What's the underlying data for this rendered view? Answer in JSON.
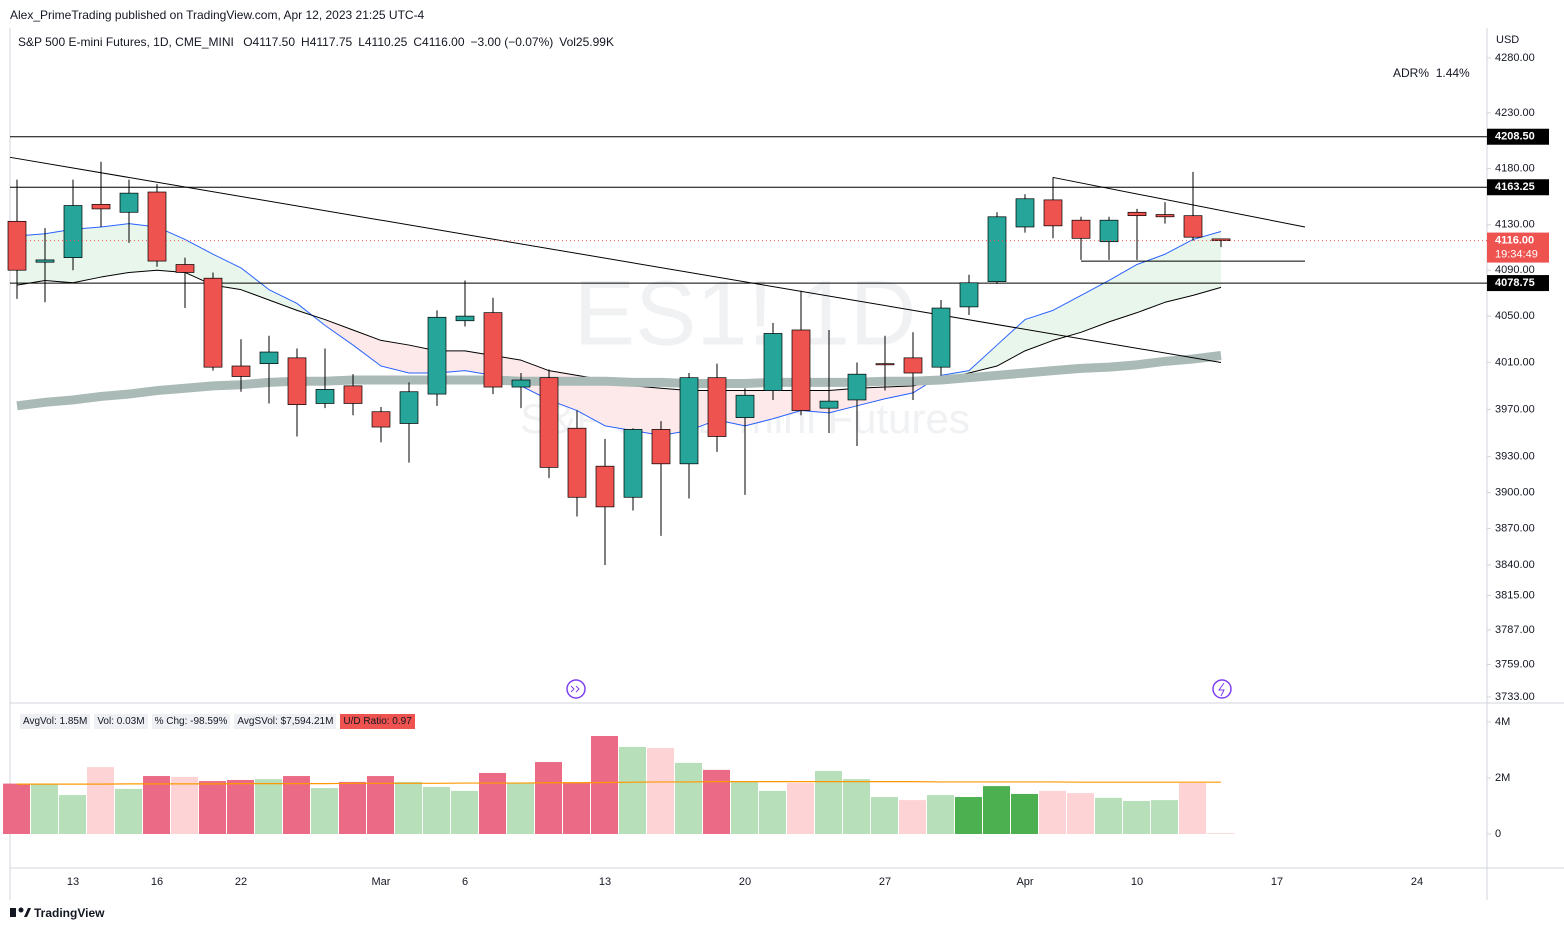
{
  "header": {
    "publisher": "Alex_PrimeTrading published on TradingView.com, Apr 12, 2023 21:25 UTC-4",
    "footer": "TradingView"
  },
  "chart_data": [
    {
      "type": "candlestick",
      "title": "S&P 500 E-mini Futures, 1D, CME_MINI",
      "ohlc_text": [
        "O4117.50",
        "H4117.75",
        "L4110.25",
        "C4116.00",
        "−3.00 (−0.07%)",
        "Vol25.99K"
      ],
      "currency": "USD",
      "indicator": {
        "name": "ADR%",
        "value": 1.44,
        "value_label": "1.44%"
      },
      "watermark": [
        "ES1! 1D",
        "S&P 500 E-mini Futures"
      ],
      "categories": [
        null,
        null,
        "13",
        null,
        null,
        "16",
        null,
        null,
        "22",
        null,
        null,
        null,
        null,
        "Mar",
        null,
        null,
        "6",
        null,
        null,
        null,
        null,
        "13",
        null,
        null,
        null,
        null,
        "20",
        null,
        null,
        null,
        null,
        "27",
        null,
        null,
        null,
        null,
        "Apr",
        null,
        null,
        null,
        "10",
        null,
        null,
        null,
        null,
        "17",
        null,
        null,
        null,
        null,
        "24"
      ],
      "open": [
        4133,
        4097,
        4101,
        4148,
        4141,
        4159,
        4095,
        4083,
        4007,
        4009,
        4014,
        3975,
        3990,
        3968,
        3958,
        3983,
        4046,
        4053,
        3989,
        3997,
        3954,
        3922,
        3896,
        3953,
        3924,
        3997,
        3963,
        3986,
        4038,
        3971,
        3978,
        4009,
        4014,
        4006,
        4058,
        4080,
        4128,
        4152,
        4134,
        4115,
        4141,
        4139,
        4138,
        4117.5,
        null,
        null,
        null,
        null,
        null,
        null,
        null
      ],
      "high": [
        4170,
        4127,
        4170,
        4186,
        4170,
        4166,
        4101,
        4088,
        4030,
        4033,
        4022,
        4022,
        4000,
        3972,
        3993,
        4055,
        4081,
        4066,
        4001,
        4004,
        3969,
        3945,
        3954,
        3960,
        4001,
        4009,
        3988,
        4044,
        4072,
        4038,
        4010,
        4033,
        4036,
        4064,
        4086,
        4141,
        4157,
        4172,
        4137,
        4137,
        4144,
        4150,
        4177,
        4117.75,
        null,
        null,
        null,
        null,
        null,
        null,
        null
      ],
      "low": [
        4065,
        4062,
        4090,
        4128,
        4114,
        4093,
        4057,
        4003,
        3985,
        3975,
        3947,
        3971,
        3965,
        3942,
        3925,
        3973,
        4041,
        3983,
        3971,
        3912,
        3880,
        3840,
        3885,
        3864,
        3895,
        3934,
        3898,
        3978,
        3965,
        3950,
        3939,
        3986,
        3978,
        3999,
        4051,
        4078,
        4123,
        4118,
        4099,
        4099,
        4099,
        4131,
        4116,
        4110.25,
        null,
        null,
        null,
        null,
        null,
        null,
        null
      ],
      "close": [
        4090,
        4099,
        4147,
        4144,
        4158,
        4098,
        4088,
        4006,
        3998,
        4019,
        3974,
        3987,
        3975,
        3955,
        3985,
        4049,
        4050,
        3989,
        3995,
        3921,
        3896,
        3888,
        3953,
        3924,
        3997,
        3947,
        3982,
        4035,
        3969,
        3977,
        4000,
        4008,
        4001,
        4057,
        4079,
        4137,
        4153,
        4129,
        4118,
        4134,
        4138,
        4137,
        4119,
        4116,
        null,
        null,
        null,
        null,
        null,
        null,
        null
      ],
      "up_color": "#26a69a",
      "down_color": "#ef5350",
      "overlays": [
        {
          "color": "#2962ff",
          "values": [
            4120,
            4122,
            4126,
            4128,
            4131,
            4128,
            4117,
            4104,
            4092,
            4073,
            4061,
            4042,
            4025,
            4007,
            4001,
            4001,
            4003,
            3999,
            3990,
            3978,
            3969,
            3956,
            3952,
            3948,
            3952,
            3961,
            3956,
            3962,
            3969,
            3967,
            3973,
            3979,
            3984,
            3999,
            4003,
            4025,
            4047,
            4055,
            4068,
            4081,
            4095,
            4104,
            4117,
            4124,
            null,
            null,
            null,
            null,
            null,
            null,
            null
          ]
        },
        {
          "color": "#000000",
          "values": [
            4077,
            4081,
            4079,
            4084,
            4088,
            4090,
            4088,
            4077,
            4073,
            4064,
            4055,
            4047,
            4038,
            4029,
            4025,
            4020,
            4020,
            4016,
            4012,
            4003,
            3999,
            3995,
            3990,
            3988,
            3986,
            3986,
            3986,
            3986,
            3986,
            3986,
            3988,
            3989,
            3990,
            3995,
            4001,
            4007,
            4020,
            4029,
            4036,
            4045,
            4053,
            4062,
            4068,
            4075,
            null,
            null,
            null,
            null,
            null,
            null,
            null
          ]
        },
        {
          "color": "#a9bab7",
          "values": [
            3973,
            3976,
            3978,
            3981,
            3983,
            3986,
            3988,
            3990,
            3991,
            3993,
            3994,
            3994,
            3995,
            3995,
            3995,
            3995,
            3995,
            3995,
            3994,
            3994,
            3994,
            3994,
            3993,
            3993,
            3992,
            3992,
            3992,
            3993,
            3993,
            3993,
            3993,
            3994,
            3994,
            3995,
            3997,
            3999,
            4001,
            4003,
            4005,
            4006,
            4008,
            4011,
            4013,
            4016,
            null,
            null,
            null,
            null,
            null,
            null,
            null
          ]
        }
      ],
      "band_fill": [
        "#e9f6ec",
        "#fde9e9"
      ],
      "trendlines": [
        {
          "points": [
            [
              -0.25,
              4190
            ],
            [
              43,
              4010
            ]
          ],
          "color": "#000000"
        },
        {
          "points": [
            [
              37,
              4172
            ],
            [
              46,
              4128
            ]
          ],
          "color": "#000000"
        },
        {
          "points": [
            [
              38,
              4098
            ],
            [
              46,
              4098
            ]
          ],
          "color": "#000000"
        }
      ],
      "levels": [
        {
          "value": 4208.5,
          "label": "4208.50"
        },
        {
          "value": 4163.25,
          "label": "4163.25"
        },
        {
          "value": 4078.75,
          "label": "4078.75"
        }
      ],
      "last_price": {
        "value": 4116,
        "label": "4116.00"
      },
      "countdown": "19:34:49",
      "log_scale": true,
      "grid": false,
      "ylim": [
        3733,
        4280
      ],
      "yticks": [
        {
          "value": 4280,
          "label": "4280.00"
        },
        {
          "value": 4230,
          "label": "4230.00"
        },
        {
          "value": 4180,
          "label": "4180.00"
        },
        {
          "value": 4130,
          "label": "4130.00"
        },
        {
          "value": 4090,
          "label": "4090.00"
        },
        {
          "value": 4050,
          "label": "4050.00"
        },
        {
          "value": 4010,
          "label": "4010.00"
        },
        {
          "value": 3970,
          "label": "3970.00"
        },
        {
          "value": 3930,
          "label": "3930.00"
        },
        {
          "value": 3900,
          "label": "3900.00"
        },
        {
          "value": 3870,
          "label": "3870.00"
        },
        {
          "value": 3840,
          "label": "3840.00"
        },
        {
          "value": 3815,
          "label": "3815.00"
        },
        {
          "value": 3787,
          "label": "3787.00"
        },
        {
          "value": 3759,
          "label": "3759.00"
        },
        {
          "value": 3733,
          "label": "3733.00"
        }
      ]
    },
    {
      "type": "bar",
      "badges": [
        "AvgVol: 1.85M",
        "Vol: 0.03M",
        "% Chg: -98.59%",
        "AvgSVol: $7,594.21M",
        "U/D Ratio: 0.97"
      ],
      "values": [
        1800000,
        1790000,
        1390000,
        2390000,
        1610000,
        2070000,
        2040000,
        1890000,
        1930000,
        1960000,
        2070000,
        1640000,
        1860000,
        2070000,
        1860000,
        1680000,
        1540000,
        2180000,
        1820000,
        2570000,
        1820000,
        3500000,
        3110000,
        3070000,
        2540000,
        2290000,
        1860000,
        1540000,
        1820000,
        2250000,
        1960000,
        1320000,
        1210000,
        1390000,
        1320000,
        1710000,
        1430000,
        1540000,
        1460000,
        1290000,
        1180000,
        1210000,
        1820000,
        30000,
        null,
        null,
        null,
        null,
        null,
        null,
        null
      ],
      "colors": [
        "#eb6a86",
        "#b7dfb9",
        "#b7dfb9",
        "#fdd3d6",
        "#b7dfb9",
        "#eb6a86",
        "#fdd3d6",
        "#eb6a86",
        "#eb6a86",
        "#b7dfb9",
        "#eb6a86",
        "#b7dfb9",
        "#eb6a86",
        "#eb6a86",
        "#b7dfb9",
        "#b7dfb9",
        "#b7dfb9",
        "#eb6a86",
        "#b7dfb9",
        "#eb6a86",
        "#eb6a86",
        "#eb6a86",
        "#b7dfb9",
        "#fdd3d6",
        "#b7dfb9",
        "#eb6a86",
        "#b7dfb9",
        "#b7dfb9",
        "#fdd3d6",
        "#b7dfb9",
        "#b7dfb9",
        "#b7dfb9",
        "#fdd3d6",
        "#b7dfb9",
        "#4caf50",
        "#4caf50",
        "#4caf50",
        "#fdd3d6",
        "#fdd3d6",
        "#b7dfb9",
        "#b7dfb9",
        "#b7dfb9",
        "#fdd3d6",
        "#fdd3d6",
        null,
        null,
        null,
        null,
        null,
        null,
        null
      ],
      "average": {
        "color": "#ff9800",
        "values": [
          1780000,
          1780000,
          1780000,
          1780000,
          1790000,
          1790000,
          1790000,
          1790000,
          1800000,
          1800000,
          1800000,
          1800000,
          1810000,
          1810000,
          1810000,
          1810000,
          1820000,
          1820000,
          1820000,
          1830000,
          1830000,
          1840000,
          1850000,
          1860000,
          1860000,
          1870000,
          1870000,
          1870000,
          1870000,
          1870000,
          1870000,
          1870000,
          1870000,
          1860000,
          1860000,
          1860000,
          1860000,
          1860000,
          1850000,
          1850000,
          1850000,
          1850000,
          1850000,
          1850000,
          null,
          null,
          null,
          null,
          null,
          null,
          null
        ]
      },
      "ylim": [
        0,
        4000000
      ],
      "yticks": [
        0,
        {
          "value": 2000000,
          "label": "2M"
        },
        {
          "value": 4000000,
          "label": "4M"
        }
      ]
    }
  ]
}
